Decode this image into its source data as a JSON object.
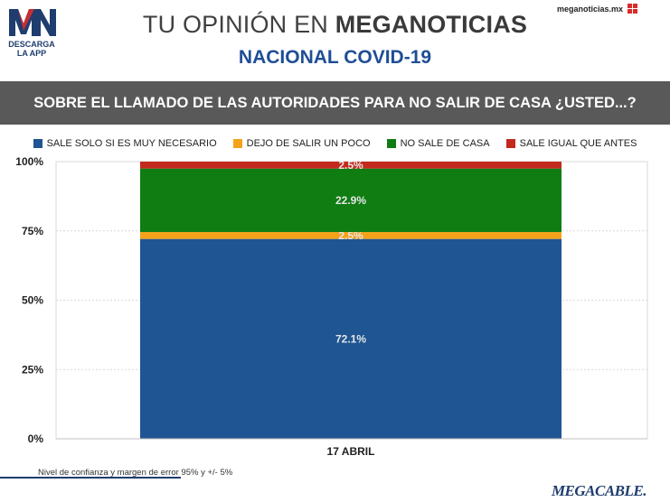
{
  "header": {
    "logo_text": "MN",
    "logo_caption_line1": "DESCARGA",
    "logo_caption_line2": "LA APP",
    "site_url": "meganoticias.mx",
    "title_light": "TU OPINIÓN EN ",
    "title_bold": "MEGANOTICIAS",
    "subtitle": "NACIONAL COVID-19"
  },
  "question": "SOBRE EL LLAMADO DE LAS AUTORIDADES PARA NO SALIR DE CASA ¿USTED...?",
  "footnote": "Nivel de confianza y margen de error 95% y +/- 5%",
  "brand": "MEGACABLE.",
  "colors": {
    "blue": "#1f5592",
    "orange": "#f5a21b",
    "green": "#0f7d12",
    "red": "#c32a1d",
    "title_blue": "#1f4e96",
    "banner": "#595959"
  },
  "chart_data": {
    "type": "bar",
    "stacked": true,
    "categories": [
      "17 ABRIL"
    ],
    "series": [
      {
        "name": "SALE SOLO SI ES MUY NECESARIO",
        "values": [
          72.1
        ],
        "color": "#1f5592",
        "label": "72.1%"
      },
      {
        "name": "DEJO DE SALIR UN POCO",
        "values": [
          2.5
        ],
        "color": "#f5a21b",
        "label": "2.5%"
      },
      {
        "name": "NO SALE DE CASA",
        "values": [
          22.9
        ],
        "color": "#0f7d12",
        "label": "22.9%"
      },
      {
        "name": "SALE IGUAL QUE ANTES",
        "values": [
          2.5
        ],
        "color": "#c32a1d",
        "label": "2.5%"
      }
    ],
    "ylim": [
      0,
      100
    ],
    "yticks": [
      0,
      25,
      50,
      75,
      100
    ],
    "ytick_labels": [
      "0%",
      "25%",
      "50%",
      "75%",
      "100%"
    ],
    "grid": true,
    "legend": "top"
  }
}
